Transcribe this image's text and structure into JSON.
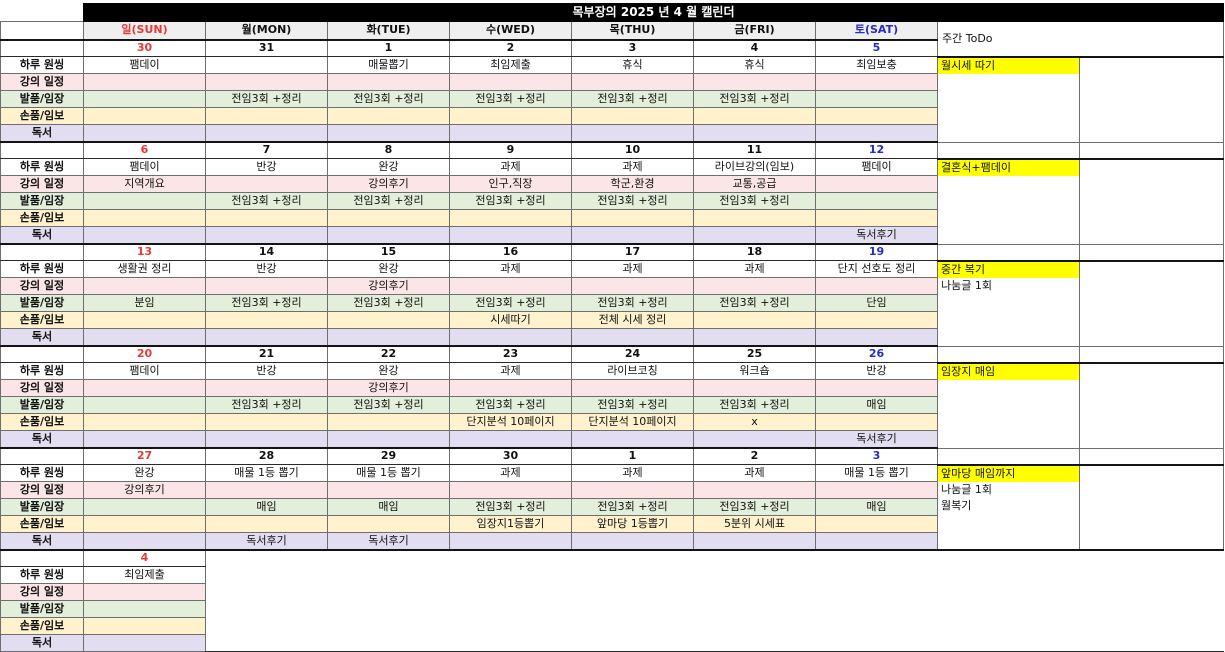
{
  "title": "목부장의 2025 년 4 월 캘린더",
  "weekly_todo_label": "주간 ToDo",
  "day_headers": [
    "일(SUN)",
    "월(MON)",
    "화(TUE)",
    "수(WED)",
    "목(THU)",
    "금(FRI)",
    "토(SAT)"
  ],
  "row_labels": [
    "하루 원씽",
    "강의 일정",
    "발품/임장",
    "손품/임보",
    "독서"
  ],
  "colors": {
    "sunday_red": "#e23b38",
    "saturday_blue": "#2a2ac8",
    "todo_highlight_bg": "#ffff00",
    "row_backgrounds": [
      "#ffffff",
      "#fbe5e6",
      "#e2efda",
      "#fff2cc",
      "#e2ddf0"
    ]
  },
  "weeks": [
    {
      "dates": [
        "30",
        "31",
        "1",
        "2",
        "3",
        "4",
        "5"
      ],
      "rows": [
        [
          "팸데이",
          "",
          "매물뽑기",
          "최임제출",
          "휴식",
          "휴식",
          "최임보충"
        ],
        [
          "",
          "",
          "",
          "",
          "",
          "",
          ""
        ],
        [
          "",
          "전임3회 +정리",
          "전임3회 +정리",
          "전임3회 +정리",
          "전임3회 +정리",
          "전임3회 +정리",
          ""
        ],
        [
          "",
          "",
          "",
          "",
          "",
          "",
          ""
        ],
        [
          "",
          "",
          "",
          "",
          "",
          "",
          ""
        ]
      ],
      "todo_highlight": "월시세 따기",
      "todo_lines": []
    },
    {
      "dates": [
        "6",
        "7",
        "8",
        "9",
        "10",
        "11",
        "12"
      ],
      "rows": [
        [
          "팸데이",
          "반강",
          "완강",
          "과제",
          "과제",
          "라이브강의(임보)",
          "팸데이"
        ],
        [
          "지역개요",
          "",
          "강의후기",
          "인구,직장",
          "학군,환경",
          "교통,공급",
          ""
        ],
        [
          "",
          "전임3회 +정리",
          "전임3회 +정리",
          "전임3회 +정리",
          "전임3회 +정리",
          "전임3회 +정리",
          ""
        ],
        [
          "",
          "",
          "",
          "",
          "",
          "",
          ""
        ],
        [
          "",
          "",
          "",
          "",
          "",
          "",
          "독서후기"
        ]
      ],
      "todo_highlight": "결혼식+팸데이",
      "todo_lines": []
    },
    {
      "dates": [
        "13",
        "14",
        "15",
        "16",
        "17",
        "18",
        "19"
      ],
      "rows": [
        [
          "생활권 정리",
          "반강",
          "완강",
          "과제",
          "과제",
          "과제",
          "단지 선호도 정리"
        ],
        [
          "",
          "",
          "강의후기",
          "",
          "",
          "",
          ""
        ],
        [
          "분임",
          "전임3회 +정리",
          "전임3회 +정리",
          "전임3회 +정리",
          "전임3회 +정리",
          "전임3회 +정리",
          "단임"
        ],
        [
          "",
          "",
          "",
          "시세따기",
          "전체 시세 정리",
          "",
          ""
        ],
        [
          "",
          "",
          "",
          "",
          "",
          "",
          ""
        ]
      ],
      "todo_highlight": "중간 복기",
      "todo_lines": [
        "나눔글 1회"
      ]
    },
    {
      "dates": [
        "20",
        "21",
        "22",
        "23",
        "24",
        "25",
        "26"
      ],
      "rows": [
        [
          "팸데이",
          "반강",
          "완강",
          "과제",
          "라이브코칭",
          "워크숍",
          "반강"
        ],
        [
          "",
          "",
          "강의후기",
          "",
          "",
          "",
          ""
        ],
        [
          "",
          "전임3회 +정리",
          "전임3회 +정리",
          "전임3회 +정리",
          "전임3회 +정리",
          "전임3회 +정리",
          "매임"
        ],
        [
          "",
          "",
          "",
          "단지분석 10페이지",
          "단지분석 10페이지",
          "x",
          ""
        ],
        [
          "",
          "",
          "",
          "",
          "",
          "",
          "독서후기"
        ]
      ],
      "todo_highlight": "임장지 매임",
      "todo_lines": []
    },
    {
      "dates": [
        "27",
        "28",
        "29",
        "30",
        "1",
        "2",
        "3"
      ],
      "rows": [
        [
          "완강",
          "매물 1등 뽑기",
          "매물 1등 뽑기",
          "과제",
          "과제",
          "과제",
          "매물 1등 뽑기"
        ],
        [
          "강의후기",
          "",
          "",
          "",
          "",
          "",
          ""
        ],
        [
          "",
          "매임",
          "매임",
          "전임3회 +정리",
          "전임3회 +정리",
          "전임3회 +정리",
          "매임"
        ],
        [
          "",
          "",
          "",
          "임장지1등뽑기",
          "앞마당 1등뽑기",
          "5분위 시세표",
          ""
        ],
        [
          "",
          "독서후기",
          "독서후기",
          "",
          "",
          "",
          ""
        ]
      ],
      "todo_highlight": "앞마당 매임까지",
      "todo_lines": [
        "나눔글 1회",
        "월복기"
      ]
    },
    {
      "partial": true,
      "dates": [
        "4"
      ],
      "rows": [
        [
          "최임제출"
        ],
        [
          ""
        ],
        [
          ""
        ],
        [
          ""
        ],
        [
          ""
        ]
      ],
      "todo_highlight": "",
      "todo_lines": []
    }
  ]
}
